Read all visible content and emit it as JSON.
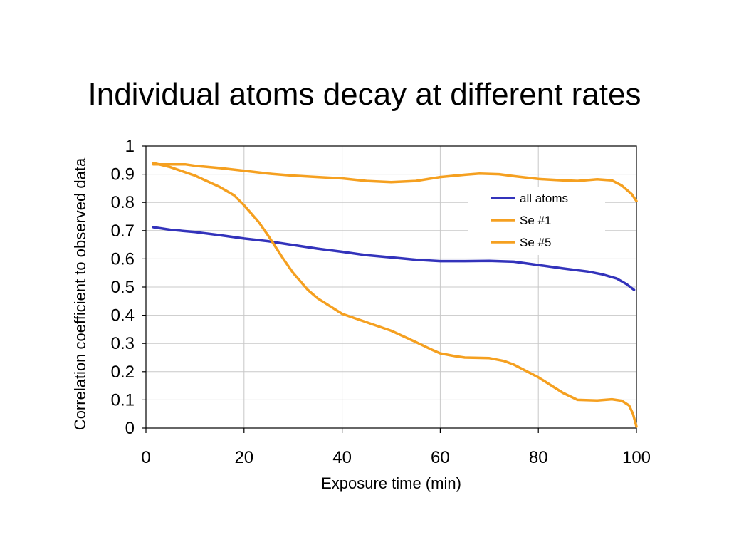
{
  "slide": {
    "title": "Individual atoms decay at different rates"
  },
  "chart_data": {
    "type": "line",
    "title": "",
    "xlabel": "Exposure time (min)",
    "ylabel": "Correlation coefficient to observed data",
    "xlim": [
      0,
      100
    ],
    "ylim": [
      0,
      1
    ],
    "xticks": [
      "0",
      "20",
      "40",
      "60",
      "80",
      "100"
    ],
    "yticks": [
      "0",
      "0.1",
      "0.2",
      "0.3",
      "0.4",
      "0.5",
      "0.6",
      "0.7",
      "0.8",
      "0.9",
      "1"
    ],
    "grid": true,
    "legend_position": "top-right",
    "series": [
      {
        "name": "all atoms",
        "color": "#3333bb",
        "points": [
          [
            1.5,
            0.712
          ],
          [
            5,
            0.703
          ],
          [
            10,
            0.695
          ],
          [
            15,
            0.684
          ],
          [
            20,
            0.672
          ],
          [
            25,
            0.662
          ],
          [
            30,
            0.649
          ],
          [
            35,
            0.636
          ],
          [
            40,
            0.625
          ],
          [
            45,
            0.613
          ],
          [
            50,
            0.605
          ],
          [
            55,
            0.597
          ],
          [
            60,
            0.592
          ],
          [
            65,
            0.592
          ],
          [
            70,
            0.593
          ],
          [
            75,
            0.59
          ],
          [
            80,
            0.578
          ],
          [
            85,
            0.566
          ],
          [
            90,
            0.555
          ],
          [
            93,
            0.545
          ],
          [
            96,
            0.53
          ],
          [
            98,
            0.51
          ],
          [
            99.5,
            0.49
          ]
        ]
      },
      {
        "name": "Se #1",
        "color": "#f5a020",
        "points": [
          [
            1.5,
            0.935
          ],
          [
            5,
            0.935
          ],
          [
            8,
            0.935
          ],
          [
            10,
            0.93
          ],
          [
            15,
            0.922
          ],
          [
            20,
            0.912
          ],
          [
            25,
            0.902
          ],
          [
            30,
            0.895
          ],
          [
            35,
            0.89
          ],
          [
            40,
            0.885
          ],
          [
            45,
            0.876
          ],
          [
            50,
            0.872
          ],
          [
            55,
            0.876
          ],
          [
            60,
            0.89
          ],
          [
            65,
            0.898
          ],
          [
            68,
            0.902
          ],
          [
            72,
            0.9
          ],
          [
            75,
            0.893
          ],
          [
            80,
            0.883
          ],
          [
            85,
            0.878
          ],
          [
            88,
            0.876
          ],
          [
            92,
            0.882
          ],
          [
            95,
            0.878
          ],
          [
            97,
            0.86
          ],
          [
            99,
            0.83
          ],
          [
            100,
            0.805
          ]
        ]
      },
      {
        "name": "Se #5",
        "color": "#f5a020",
        "points": [
          [
            1.5,
            0.94
          ],
          [
            5,
            0.925
          ],
          [
            10,
            0.895
          ],
          [
            15,
            0.855
          ],
          [
            18,
            0.825
          ],
          [
            20,
            0.79
          ],
          [
            23,
            0.73
          ],
          [
            25,
            0.68
          ],
          [
            28,
            0.6
          ],
          [
            30,
            0.55
          ],
          [
            33,
            0.49
          ],
          [
            35,
            0.46
          ],
          [
            40,
            0.405
          ],
          [
            45,
            0.375
          ],
          [
            50,
            0.345
          ],
          [
            55,
            0.305
          ],
          [
            58,
            0.28
          ],
          [
            60,
            0.265
          ],
          [
            63,
            0.255
          ],
          [
            65,
            0.25
          ],
          [
            70,
            0.248
          ],
          [
            73,
            0.238
          ],
          [
            75,
            0.225
          ],
          [
            80,
            0.18
          ],
          [
            85,
            0.125
          ],
          [
            88,
            0.1
          ],
          [
            92,
            0.098
          ],
          [
            95,
            0.102
          ],
          [
            97,
            0.097
          ],
          [
            98.5,
            0.08
          ],
          [
            99.3,
            0.05
          ],
          [
            100,
            0.005
          ]
        ]
      }
    ]
  }
}
